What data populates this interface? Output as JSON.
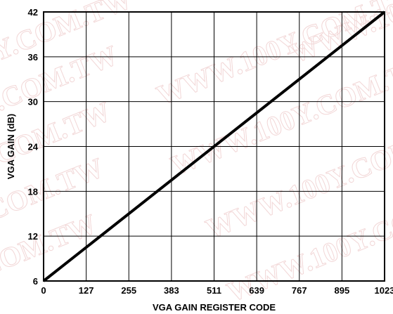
{
  "chart_data": {
    "type": "line",
    "title": "",
    "xlabel": "VGA GAIN REGISTER CODE",
    "ylabel": "VGA GAIN (dB)",
    "xlim": [
      0,
      1023
    ],
    "ylim": [
      6,
      42
    ],
    "x_ticks": [
      "0",
      "127",
      "255",
      "383",
      "511",
      "639",
      "767",
      "895",
      "1023"
    ],
    "y_ticks": [
      "6",
      "12",
      "18",
      "24",
      "30",
      "36",
      "42"
    ],
    "grid": true,
    "series": [
      {
        "x": [
          0,
          1023
        ],
        "y": [
          6,
          42
        ]
      }
    ]
  },
  "watermark": {
    "text_a": "WWW.100Y.COM.TW",
    "text_b": "100Y.COM.TW"
  }
}
